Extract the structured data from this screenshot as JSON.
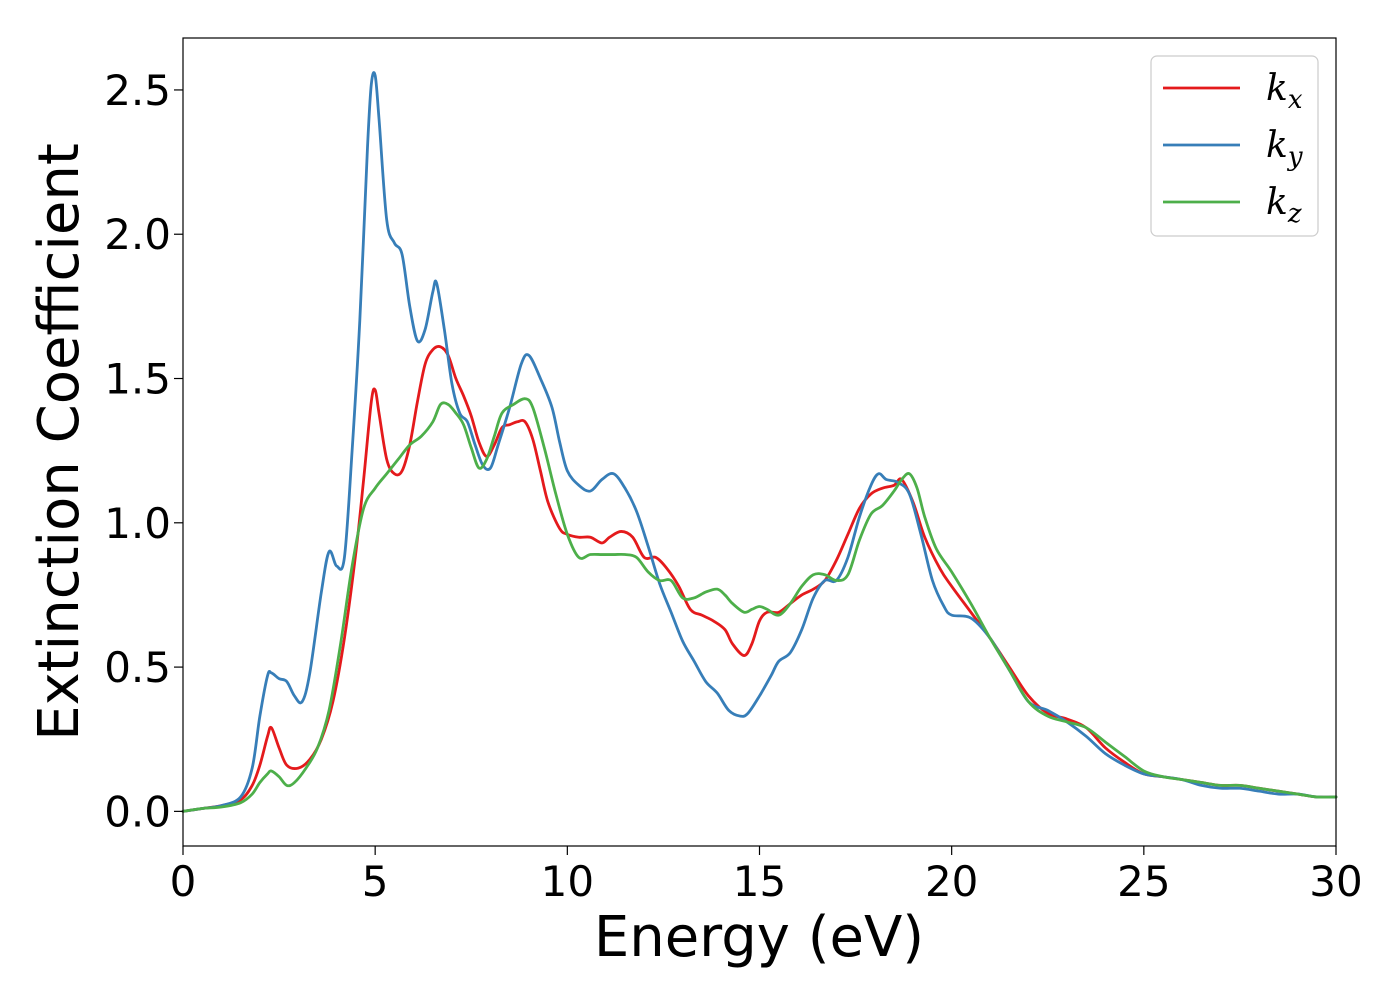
{
  "chart_data": {
    "type": "line",
    "title": "",
    "xlabel": "Energy (eV)",
    "ylabel": "Extinction Coefficient",
    "xlim": [
      0,
      30
    ],
    "ylim": [
      -0.12,
      2.68
    ],
    "xticks": [
      0,
      5,
      10,
      15,
      20,
      25,
      30
    ],
    "yticks": [
      0.0,
      0.5,
      1.0,
      1.5,
      2.0,
      2.5
    ],
    "xtick_labels": [
      "0",
      "5",
      "10",
      "15",
      "20",
      "25",
      "30"
    ],
    "ytick_labels": [
      "0.0",
      "0.5",
      "1.0",
      "1.5",
      "2.0",
      "2.5"
    ],
    "grid": false,
    "legend_position": "top-right",
    "series": [
      {
        "name": "k_x",
        "legend_base": "k",
        "legend_sub": "x",
        "color": "#e41a1c",
        "x": [
          0,
          0.5,
          1.0,
          1.5,
          1.8,
          2.0,
          2.2,
          2.3,
          2.5,
          2.7,
          3.0,
          3.3,
          3.6,
          3.9,
          4.2,
          4.5,
          4.7,
          4.9,
          5.0,
          5.1,
          5.3,
          5.5,
          5.7,
          5.9,
          6.1,
          6.3,
          6.5,
          6.7,
          6.9,
          7.1,
          7.3,
          7.5,
          7.7,
          7.9,
          8.1,
          8.3,
          8.5,
          8.7,
          8.9,
          9.1,
          9.3,
          9.5,
          9.8,
          10.0,
          10.3,
          10.6,
          10.9,
          11.1,
          11.4,
          11.7,
          12.0,
          12.3,
          12.6,
          12.9,
          13.2,
          13.5,
          13.8,
          14.1,
          14.3,
          14.6,
          14.8,
          15.0,
          15.2,
          15.5,
          15.8,
          16.1,
          16.4,
          16.7,
          17.0,
          17.3,
          17.6,
          17.9,
          18.2,
          18.5,
          18.7,
          19.0,
          19.3,
          19.7,
          20.0,
          20.5,
          21.0,
          21.5,
          22.0,
          22.5,
          23.0,
          23.5,
          24.0,
          24.5,
          25.0,
          25.5,
          26.0,
          26.5,
          27.0,
          27.5,
          28.0,
          28.5,
          29.0,
          29.5,
          30.0
        ],
        "y": [
          0.0,
          0.01,
          0.02,
          0.04,
          0.09,
          0.16,
          0.26,
          0.29,
          0.22,
          0.16,
          0.15,
          0.18,
          0.25,
          0.38,
          0.6,
          0.9,
          1.15,
          1.42,
          1.46,
          1.38,
          1.22,
          1.17,
          1.18,
          1.27,
          1.42,
          1.55,
          1.6,
          1.61,
          1.58,
          1.5,
          1.44,
          1.37,
          1.28,
          1.23,
          1.27,
          1.33,
          1.34,
          1.35,
          1.35,
          1.29,
          1.18,
          1.07,
          0.98,
          0.96,
          0.95,
          0.95,
          0.93,
          0.95,
          0.97,
          0.95,
          0.88,
          0.88,
          0.84,
          0.78,
          0.7,
          0.68,
          0.66,
          0.63,
          0.58,
          0.54,
          0.58,
          0.66,
          0.69,
          0.69,
          0.72,
          0.75,
          0.77,
          0.8,
          0.87,
          0.96,
          1.05,
          1.1,
          1.12,
          1.13,
          1.15,
          1.07,
          0.95,
          0.84,
          0.78,
          0.69,
          0.6,
          0.5,
          0.4,
          0.34,
          0.32,
          0.29,
          0.22,
          0.17,
          0.13,
          0.12,
          0.11,
          0.1,
          0.09,
          0.09,
          0.08,
          0.07,
          0.06,
          0.05,
          0.05
        ]
      },
      {
        "name": "k_y",
        "legend_base": "k",
        "legend_sub": "y",
        "color": "#377eb8",
        "x": [
          0,
          0.5,
          1.0,
          1.5,
          1.8,
          2.0,
          2.2,
          2.3,
          2.5,
          2.7,
          2.9,
          3.1,
          3.3,
          3.6,
          3.8,
          4.0,
          4.2,
          4.4,
          4.6,
          4.8,
          4.9,
          5.0,
          5.1,
          5.3,
          5.5,
          5.7,
          5.9,
          6.1,
          6.3,
          6.5,
          6.6,
          6.8,
          7.0,
          7.2,
          7.4,
          7.6,
          7.8,
          8.0,
          8.2,
          8.5,
          8.8,
          9.0,
          9.3,
          9.6,
          9.8,
          10.0,
          10.3,
          10.6,
          10.9,
          11.2,
          11.5,
          11.8,
          12.1,
          12.4,
          12.7,
          13.0,
          13.3,
          13.6,
          13.9,
          14.2,
          14.5,
          14.7,
          15.0,
          15.3,
          15.5,
          15.8,
          16.1,
          16.4,
          16.7,
          17.0,
          17.3,
          17.6,
          17.9,
          18.1,
          18.3,
          18.6,
          18.9,
          19.2,
          19.5,
          19.8,
          20.0,
          20.5,
          21.0,
          21.5,
          22.0,
          22.5,
          23.0,
          23.5,
          24.0,
          24.5,
          25.0,
          25.5,
          26.0,
          26.5,
          27.0,
          27.5,
          28.0,
          28.5,
          29.0,
          29.5,
          30.0
        ],
        "y": [
          0.0,
          0.01,
          0.02,
          0.05,
          0.15,
          0.33,
          0.47,
          0.48,
          0.46,
          0.45,
          0.4,
          0.38,
          0.48,
          0.76,
          0.9,
          0.85,
          0.88,
          1.25,
          1.7,
          2.3,
          2.52,
          2.55,
          2.4,
          2.05,
          1.97,
          1.93,
          1.75,
          1.63,
          1.67,
          1.8,
          1.83,
          1.67,
          1.48,
          1.38,
          1.35,
          1.27,
          1.2,
          1.19,
          1.27,
          1.4,
          1.55,
          1.58,
          1.5,
          1.4,
          1.28,
          1.18,
          1.13,
          1.11,
          1.15,
          1.17,
          1.12,
          1.04,
          0.92,
          0.79,
          0.69,
          0.59,
          0.52,
          0.45,
          0.41,
          0.35,
          0.33,
          0.34,
          0.4,
          0.47,
          0.52,
          0.55,
          0.63,
          0.74,
          0.8,
          0.8,
          0.88,
          1.02,
          1.13,
          1.17,
          1.15,
          1.14,
          1.1,
          0.96,
          0.8,
          0.71,
          0.68,
          0.67,
          0.6,
          0.49,
          0.38,
          0.35,
          0.31,
          0.26,
          0.2,
          0.16,
          0.13,
          0.12,
          0.11,
          0.09,
          0.08,
          0.08,
          0.07,
          0.06,
          0.06,
          0.05,
          0.05
        ]
      },
      {
        "name": "k_z",
        "legend_base": "k",
        "legend_sub": "z",
        "color": "#4daf4a",
        "x": [
          0,
          0.5,
          1.0,
          1.5,
          1.8,
          2.0,
          2.2,
          2.3,
          2.5,
          2.7,
          2.9,
          3.2,
          3.5,
          3.8,
          4.1,
          4.4,
          4.7,
          5.0,
          5.3,
          5.6,
          5.9,
          6.2,
          6.5,
          6.7,
          6.9,
          7.1,
          7.3,
          7.5,
          7.7,
          7.9,
          8.1,
          8.3,
          8.6,
          8.9,
          9.1,
          9.4,
          9.7,
          10.0,
          10.3,
          10.6,
          10.9,
          11.2,
          11.5,
          11.8,
          12.1,
          12.4,
          12.7,
          13.0,
          13.3,
          13.6,
          13.9,
          14.1,
          14.3,
          14.6,
          14.8,
          15.0,
          15.2,
          15.5,
          15.8,
          16.1,
          16.4,
          16.7,
          17.0,
          17.3,
          17.6,
          17.9,
          18.2,
          18.5,
          18.7,
          18.9,
          19.1,
          19.3,
          19.6,
          20.0,
          20.5,
          21.0,
          21.5,
          22.0,
          22.5,
          23.0,
          23.5,
          24.0,
          24.5,
          25.0,
          25.5,
          26.0,
          26.5,
          27.0,
          27.5,
          28.0,
          28.5,
          29.0,
          29.5,
          30.0
        ],
        "y": [
          0.0,
          0.01,
          0.015,
          0.03,
          0.06,
          0.1,
          0.13,
          0.14,
          0.12,
          0.09,
          0.1,
          0.15,
          0.22,
          0.35,
          0.58,
          0.85,
          1.05,
          1.12,
          1.17,
          1.22,
          1.27,
          1.3,
          1.35,
          1.41,
          1.41,
          1.38,
          1.34,
          1.26,
          1.19,
          1.22,
          1.3,
          1.38,
          1.41,
          1.43,
          1.4,
          1.26,
          1.1,
          0.96,
          0.88,
          0.89,
          0.89,
          0.89,
          0.89,
          0.88,
          0.83,
          0.8,
          0.8,
          0.74,
          0.74,
          0.76,
          0.77,
          0.75,
          0.72,
          0.69,
          0.7,
          0.71,
          0.7,
          0.68,
          0.72,
          0.78,
          0.82,
          0.82,
          0.8,
          0.82,
          0.94,
          1.03,
          1.06,
          1.11,
          1.15,
          1.17,
          1.12,
          1.02,
          0.91,
          0.83,
          0.72,
          0.6,
          0.49,
          0.38,
          0.33,
          0.31,
          0.29,
          0.24,
          0.19,
          0.14,
          0.12,
          0.11,
          0.1,
          0.09,
          0.09,
          0.08,
          0.07,
          0.06,
          0.05,
          0.05
        ]
      }
    ]
  }
}
